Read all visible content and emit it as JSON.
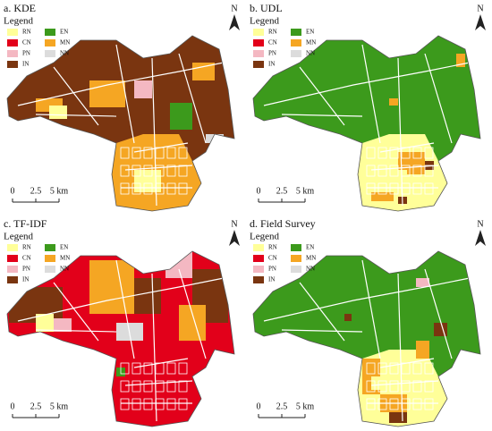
{
  "panels": [
    {
      "title": "a. KDE",
      "legend_title": "Legend"
    },
    {
      "title": "b. UDL",
      "legend_title": "Legend"
    },
    {
      "title": "c. TF-IDF",
      "legend_title": "Legend"
    },
    {
      "title": "d. Field Survey",
      "legend_title": "Legend"
    }
  ],
  "legend": {
    "items": [
      {
        "label": "RN",
        "color": "#ffff99"
      },
      {
        "label": "EN",
        "color": "#3c9a1c"
      },
      {
        "label": "CN",
        "color": "#e2001a"
      },
      {
        "label": "MN",
        "color": "#f5a623"
      },
      {
        "label": "PN",
        "color": "#f4b8c2"
      },
      {
        "label": "NN",
        "color": "#dcdcdc"
      },
      {
        "label": "IN",
        "color": "#7a3510"
      }
    ]
  },
  "scale": {
    "labels": [
      "0",
      "2.5",
      "5 km"
    ]
  },
  "north": "N"
}
